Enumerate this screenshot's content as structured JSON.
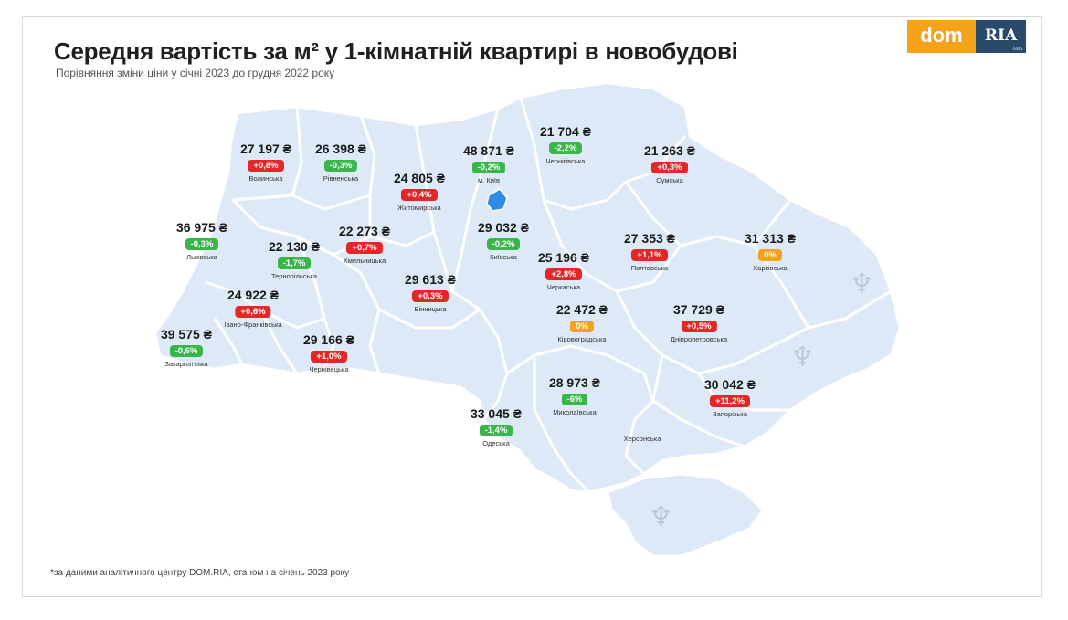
{
  "title": "Середня вартість за м² у 1-кімнатній квартирі в новобудові",
  "subtitle": "Порівняння зміни ціни у січні 2023 до грудня 2022 року",
  "footnote": "*за даними аналітичного центру DOM.RIA, станом на січень 2023 року",
  "logo": {
    "left": "dom",
    "right": "RIA",
    "right_small": "com"
  },
  "colors": {
    "up": "#e32626",
    "down": "#3ab54a",
    "flat": "#f5a21b",
    "land": "#dde9f6",
    "border": "#ffffff"
  },
  "regions": [
    {
      "id": "volynska",
      "price": "27 197 ₴",
      "change": "+0,8%",
      "trend": "up",
      "name": "Волинська"
    },
    {
      "id": "rivnenska",
      "price": "26 398 ₴",
      "change": "-0,3%",
      "trend": "down",
      "name": "Рівненська"
    },
    {
      "id": "zhytomyrska",
      "price": "24 805 ₴",
      "change": "+0,4%",
      "trend": "up",
      "name": "Житомирська"
    },
    {
      "id": "kyiv-city",
      "price": "48 871 ₴",
      "change": "-0,2%",
      "trend": "down",
      "name": "м. Київ"
    },
    {
      "id": "chernihivska",
      "price": "21 704 ₴",
      "change": "-2,2%",
      "trend": "down",
      "name": "Чернігівська"
    },
    {
      "id": "sumska",
      "price": "21 263 ₴",
      "change": "+0,3%",
      "trend": "up",
      "name": "Сумська"
    },
    {
      "id": "lvivska",
      "price": "36 975 ₴",
      "change": "-0,3%",
      "trend": "down",
      "name": "Львівська"
    },
    {
      "id": "ternopilska",
      "price": "22 130 ₴",
      "change": "-1,7%",
      "trend": "down",
      "name": "Тернопільська"
    },
    {
      "id": "khmelnytska",
      "price": "22 273 ₴",
      "change": "+0,7%",
      "trend": "up",
      "name": "Хмельницька"
    },
    {
      "id": "kyivska",
      "price": "29 032 ₴",
      "change": "-0,2%",
      "trend": "down",
      "name": "Київська"
    },
    {
      "id": "poltavska",
      "price": "27 353 ₴",
      "change": "+1,1%",
      "trend": "up",
      "name": "Полтавська"
    },
    {
      "id": "kharkivska",
      "price": "31 313 ₴",
      "change": "0%",
      "trend": "flat",
      "name": "Харківська"
    },
    {
      "id": "cherkaska",
      "price": "25 196 ₴",
      "change": "+2,8%",
      "trend": "up",
      "name": "Черкаська"
    },
    {
      "id": "ivano-frankivska",
      "price": "24 922 ₴",
      "change": "+0,6%",
      "trend": "up",
      "name": "Івано-Франківська"
    },
    {
      "id": "vinnytska",
      "price": "29 613 ₴",
      "change": "+0,3%",
      "trend": "up",
      "name": "Вінницька"
    },
    {
      "id": "kirovohradska",
      "price": "22 472 ₴",
      "change": "0%",
      "trend": "flat",
      "name": "Кіровоградська"
    },
    {
      "id": "dnipropetrovska",
      "price": "37 729 ₴",
      "change": "+0,5%",
      "trend": "up",
      "name": "Дніпропетровська"
    },
    {
      "id": "zakarpatska",
      "price": "39 575 ₴",
      "change": "-0,6%",
      "trend": "down",
      "name": "Закарпатська"
    },
    {
      "id": "chernivetska",
      "price": "29 166 ₴",
      "change": "+1,0%",
      "trend": "up",
      "name": "Чернівецька"
    },
    {
      "id": "mykolaivska",
      "price": "28 973 ₴",
      "change": "-6%",
      "trend": "down",
      "name": "Миколаївська"
    },
    {
      "id": "zaporizka",
      "price": "30 042 ₴",
      "change": "+11,2%",
      "trend": "up",
      "name": "Запорізька"
    },
    {
      "id": "odeska",
      "price": "33 045 ₴",
      "change": "-1,4%",
      "trend": "down",
      "name": "Одеська"
    }
  ],
  "labels_only": [
    {
      "id": "khersonska",
      "name": "Херсонська"
    }
  ],
  "icons": [
    "trident-icon",
    "trident-icon",
    "trident-icon"
  ]
}
